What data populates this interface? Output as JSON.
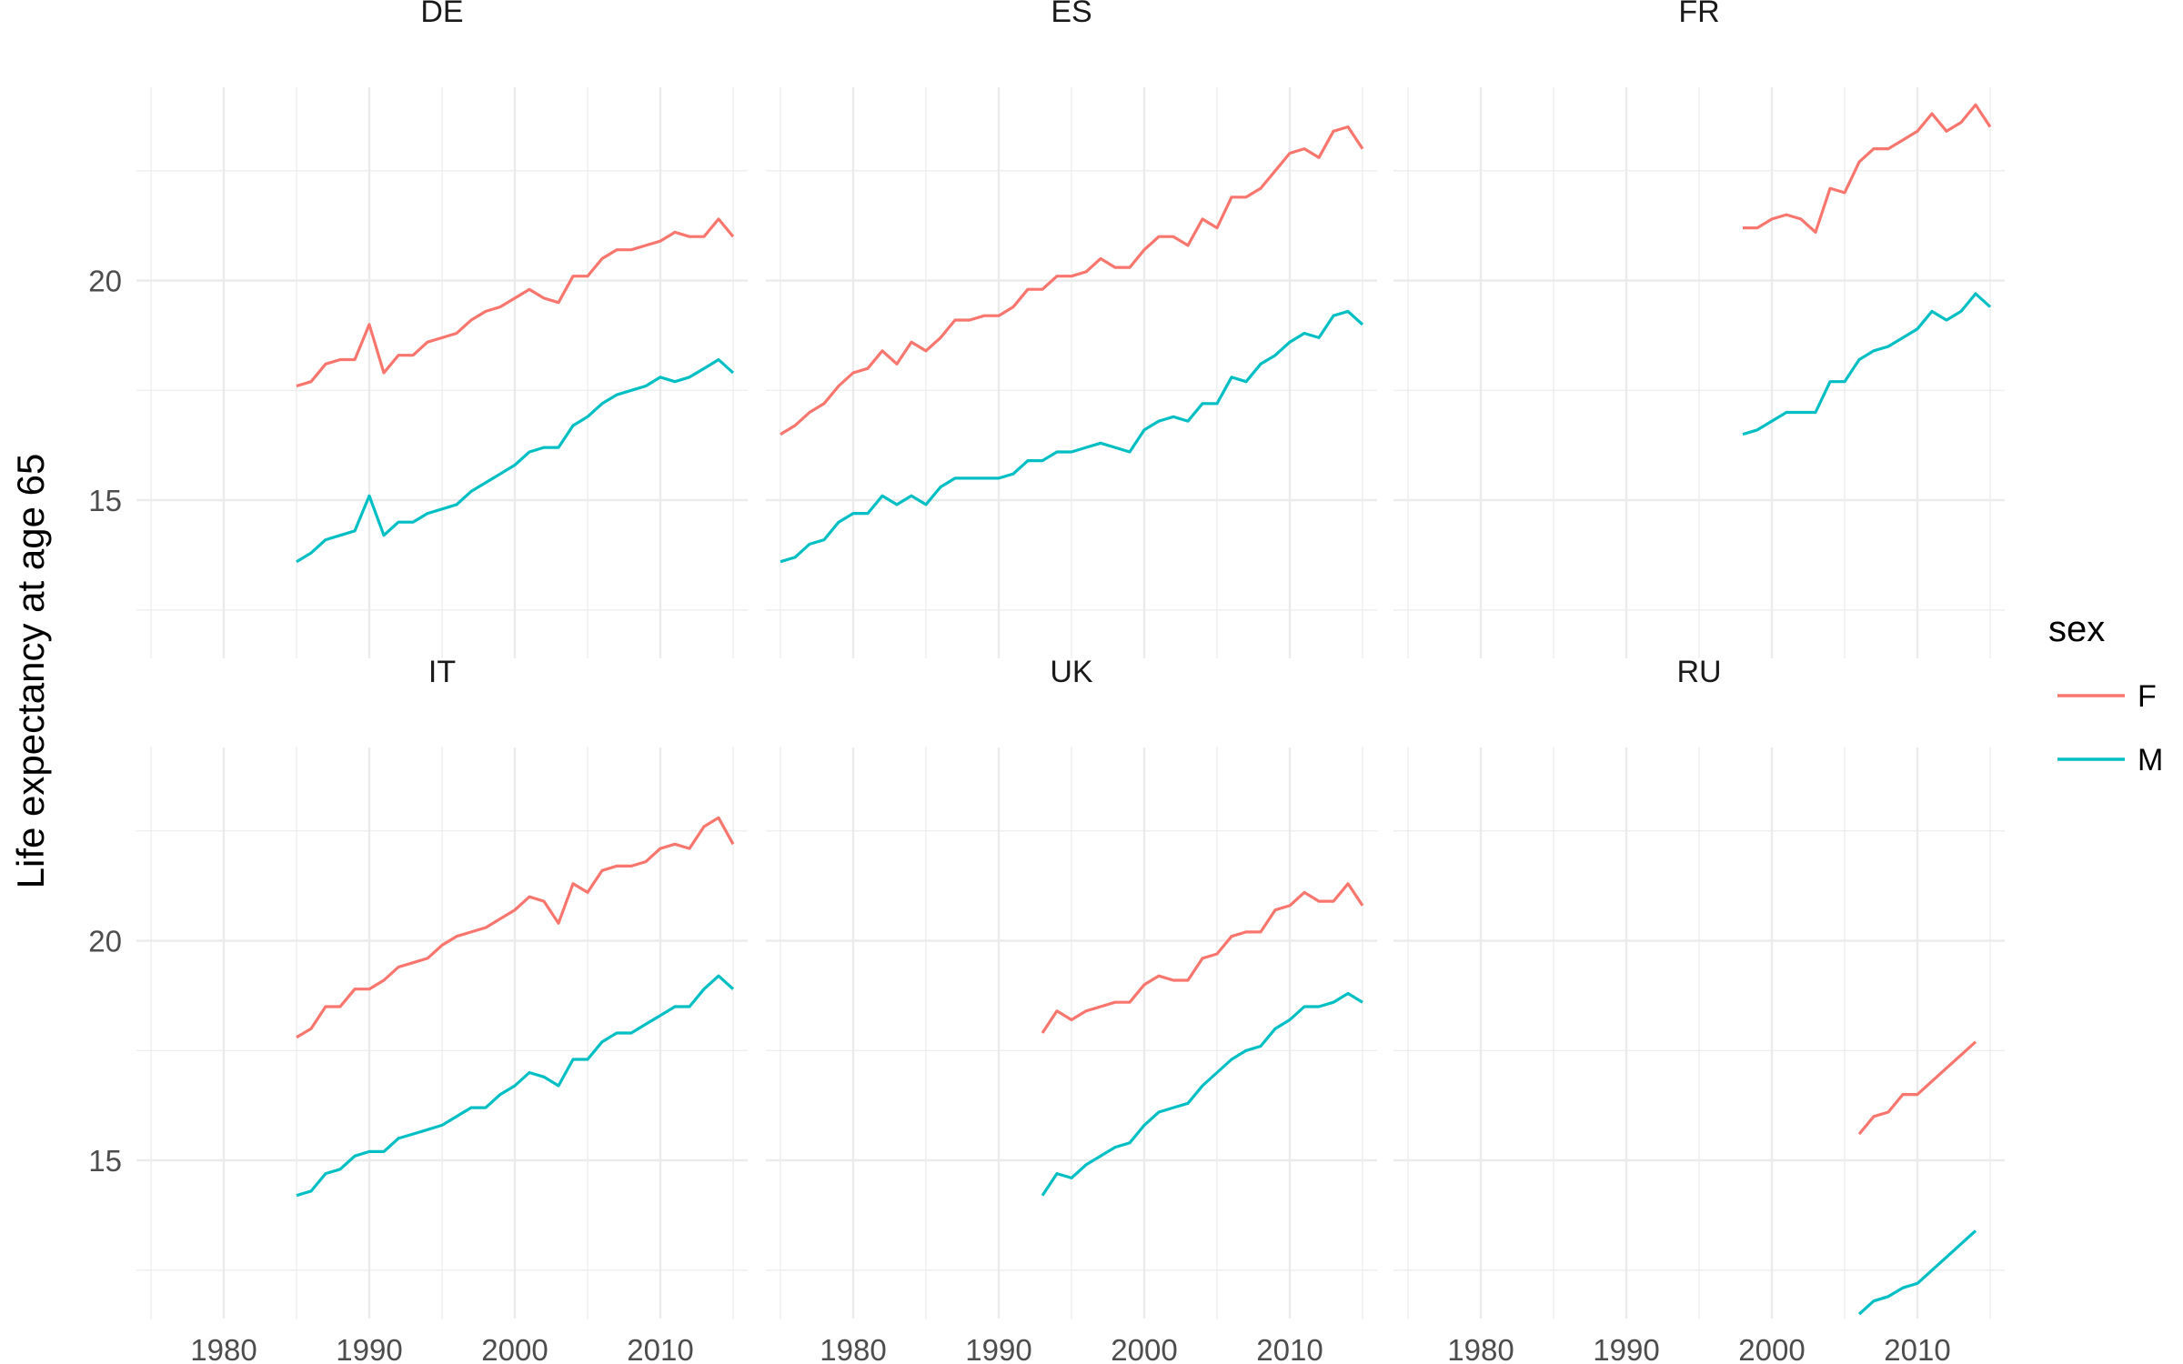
{
  "chart_data": {
    "type": "line",
    "ylabel": "Life expectancy at age 65",
    "legend": {
      "title": "sex",
      "position": "right",
      "entries": [
        {
          "label": "F",
          "color": "#F8766D"
        },
        {
          "label": "M",
          "color": "#00BFC4"
        }
      ]
    },
    "colors": {
      "F": "#F8766D",
      "M": "#00BFC4"
    },
    "x_ticks": [
      1980,
      1990,
      2000,
      2010
    ],
    "x_tick_labels": [
      "1980",
      "1990",
      "2000",
      "2010"
    ],
    "y_ticks": [
      15,
      20
    ],
    "y_tick_labels": [
      "15",
      "20"
    ],
    "xlim": [
      1974,
      2016
    ],
    "ylim": [
      11.4,
      24.4
    ],
    "grid": true,
    "facets": [
      {
        "name": "DE",
        "series": [
          {
            "name": "F",
            "x": [
              1985,
              1986,
              1987,
              1988,
              1989,
              1990,
              1991,
              1992,
              1993,
              1994,
              1995,
              1996,
              1997,
              1998,
              1999,
              2000,
              2001,
              2002,
              2003,
              2004,
              2005,
              2006,
              2007,
              2008,
              2009,
              2010,
              2011,
              2012,
              2013,
              2014,
              2015
            ],
            "y": [
              17.6,
              17.7,
              18.1,
              18.2,
              18.2,
              19.0,
              17.9,
              18.3,
              18.3,
              18.6,
              18.7,
              18.8,
              19.1,
              19.3,
              19.4,
              19.6,
              19.8,
              19.6,
              19.5,
              20.1,
              20.1,
              20.5,
              20.7,
              20.7,
              20.8,
              20.9,
              21.1,
              21.0,
              21.0,
              21.4,
              21.0
            ]
          },
          {
            "name": "M",
            "x": [
              1985,
              1986,
              1987,
              1988,
              1989,
              1990,
              1991,
              1992,
              1993,
              1994,
              1995,
              1996,
              1997,
              1998,
              1999,
              2000,
              2001,
              2002,
              2003,
              2004,
              2005,
              2006,
              2007,
              2008,
              2009,
              2010,
              2011,
              2012,
              2013,
              2014,
              2015
            ],
            "y": [
              13.6,
              13.8,
              14.1,
              14.2,
              14.3,
              15.1,
              14.2,
              14.5,
              14.5,
              14.7,
              14.8,
              14.9,
              15.2,
              15.4,
              15.6,
              15.8,
              16.1,
              16.2,
              16.2,
              16.7,
              16.9,
              17.2,
              17.4,
              17.5,
              17.6,
              17.8,
              17.7,
              17.8,
              18.0,
              18.2,
              17.9
            ]
          }
        ]
      },
      {
        "name": "ES",
        "series": [
          {
            "name": "F",
            "x": [
              1975,
              1976,
              1977,
              1978,
              1979,
              1980,
              1981,
              1982,
              1983,
              1984,
              1985,
              1986,
              1987,
              1988,
              1989,
              1990,
              1991,
              1992,
              1993,
              1994,
              1995,
              1996,
              1997,
              1998,
              1999,
              2000,
              2001,
              2002,
              2003,
              2004,
              2005,
              2006,
              2007,
              2008,
              2009,
              2010,
              2011,
              2012,
              2013,
              2014,
              2015
            ],
            "y": [
              16.5,
              16.7,
              17.0,
              17.2,
              17.6,
              17.9,
              18.0,
              18.4,
              18.1,
              18.6,
              18.4,
              18.7,
              19.1,
              19.1,
              19.2,
              19.2,
              19.4,
              19.8,
              19.8,
              20.1,
              20.1,
              20.2,
              20.5,
              20.3,
              20.3,
              20.7,
              21.0,
              21.0,
              20.8,
              21.4,
              21.2,
              21.9,
              21.9,
              22.1,
              22.5,
              22.9,
              23.0,
              22.8,
              23.4,
              23.5,
              23.0
            ]
          },
          {
            "name": "M",
            "x": [
              1975,
              1976,
              1977,
              1978,
              1979,
              1980,
              1981,
              1982,
              1983,
              1984,
              1985,
              1986,
              1987,
              1988,
              1989,
              1990,
              1991,
              1992,
              1993,
              1994,
              1995,
              1996,
              1997,
              1998,
              1999,
              2000,
              2001,
              2002,
              2003,
              2004,
              2005,
              2006,
              2007,
              2008,
              2009,
              2010,
              2011,
              2012,
              2013,
              2014,
              2015
            ],
            "y": [
              13.6,
              13.7,
              14.0,
              14.1,
              14.5,
              14.7,
              14.7,
              15.1,
              14.9,
              15.1,
              14.9,
              15.3,
              15.5,
              15.5,
              15.5,
              15.5,
              15.6,
              15.9,
              15.9,
              16.1,
              16.1,
              16.2,
              16.3,
              16.2,
              16.1,
              16.6,
              16.8,
              16.9,
              16.8,
              17.2,
              17.2,
              17.8,
              17.7,
              18.1,
              18.3,
              18.6,
              18.8,
              18.7,
              19.2,
              19.3,
              19.0
            ]
          }
        ]
      },
      {
        "name": "FR",
        "series": [
          {
            "name": "F",
            "x": [
              1998,
              1999,
              2000,
              2001,
              2002,
              2003,
              2004,
              2005,
              2006,
              2007,
              2008,
              2009,
              2010,
              2011,
              2012,
              2013,
              2014,
              2015
            ],
            "y": [
              21.2,
              21.2,
              21.4,
              21.5,
              21.4,
              21.1,
              22.1,
              22.0,
              22.7,
              23.0,
              23.0,
              23.2,
              23.4,
              23.8,
              23.4,
              23.6,
              24.0,
              23.5
            ]
          },
          {
            "name": "M",
            "x": [
              1998,
              1999,
              2000,
              2001,
              2002,
              2003,
              2004,
              2005,
              2006,
              2007,
              2008,
              2009,
              2010,
              2011,
              2012,
              2013,
              2014,
              2015
            ],
            "y": [
              16.5,
              16.6,
              16.8,
              17.0,
              17.0,
              17.0,
              17.7,
              17.7,
              18.2,
              18.4,
              18.5,
              18.7,
              18.9,
              19.3,
              19.1,
              19.3,
              19.7,
              19.4
            ]
          }
        ]
      },
      {
        "name": "IT",
        "series": [
          {
            "name": "F",
            "x": [
              1985,
              1986,
              1987,
              1988,
              1989,
              1990,
              1991,
              1992,
              1993,
              1994,
              1995,
              1996,
              1997,
              1998,
              1999,
              2000,
              2001,
              2002,
              2003,
              2004,
              2005,
              2006,
              2007,
              2008,
              2009,
              2010,
              2011,
              2012,
              2013,
              2014,
              2015
            ],
            "y": [
              17.8,
              18.0,
              18.5,
              18.5,
              18.9,
              18.9,
              19.1,
              19.4,
              19.5,
              19.6,
              19.9,
              20.1,
              20.2,
              20.3,
              20.5,
              20.7,
              21.0,
              20.9,
              20.4,
              21.3,
              21.1,
              21.6,
              21.7,
              21.7,
              21.8,
              22.1,
              22.2,
              22.1,
              22.6,
              22.8,
              22.2
            ]
          },
          {
            "name": "M",
            "x": [
              1985,
              1986,
              1987,
              1988,
              1989,
              1990,
              1991,
              1992,
              1993,
              1994,
              1995,
              1996,
              1997,
              1998,
              1999,
              2000,
              2001,
              2002,
              2003,
              2004,
              2005,
              2006,
              2007,
              2008,
              2009,
              2010,
              2011,
              2012,
              2013,
              2014,
              2015
            ],
            "y": [
              14.2,
              14.3,
              14.7,
              14.8,
              15.1,
              15.2,
              15.2,
              15.5,
              15.6,
              15.7,
              15.8,
              16.0,
              16.2,
              16.2,
              16.5,
              16.7,
              17.0,
              16.9,
              16.7,
              17.3,
              17.3,
              17.7,
              17.9,
              17.9,
              18.1,
              18.3,
              18.5,
              18.5,
              18.9,
              19.2,
              18.9
            ]
          }
        ]
      },
      {
        "name": "UK",
        "series": [
          {
            "name": "F",
            "x": [
              1993,
              1994,
              1995,
              1996,
              1997,
              1998,
              1999,
              2000,
              2001,
              2002,
              2003,
              2004,
              2005,
              2006,
              2007,
              2008,
              2009,
              2010,
              2011,
              2012,
              2013,
              2014,
              2015
            ],
            "y": [
              17.9,
              18.4,
              18.2,
              18.4,
              18.5,
              18.6,
              18.6,
              19.0,
              19.2,
              19.1,
              19.1,
              19.6,
              19.7,
              20.1,
              20.2,
              20.2,
              20.7,
              20.8,
              21.1,
              20.9,
              20.9,
              21.3,
              20.8
            ]
          },
          {
            "name": "M",
            "x": [
              1993,
              1994,
              1995,
              1996,
              1997,
              1998,
              1999,
              2000,
              2001,
              2002,
              2003,
              2004,
              2005,
              2006,
              2007,
              2008,
              2009,
              2010,
              2011,
              2012,
              2013,
              2014,
              2015
            ],
            "y": [
              14.2,
              14.7,
              14.6,
              14.9,
              15.1,
              15.3,
              15.4,
              15.8,
              16.1,
              16.2,
              16.3,
              16.7,
              17.0,
              17.3,
              17.5,
              17.6,
              18.0,
              18.2,
              18.5,
              18.5,
              18.6,
              18.8,
              18.6
            ]
          }
        ]
      },
      {
        "name": "RU",
        "series": [
          {
            "name": "F",
            "x": [
              2006,
              2007,
              2008,
              2009,
              2010,
              2011,
              2012,
              2013,
              2014
            ],
            "y": [
              15.6,
              16.0,
              16.1,
              16.5,
              16.5,
              16.8,
              17.1,
              17.4,
              17.7
            ]
          },
          {
            "name": "M",
            "x": [
              2006,
              2007,
              2008,
              2009,
              2010,
              2011,
              2012,
              2013,
              2014
            ],
            "y": [
              11.5,
              11.8,
              11.9,
              12.1,
              12.2,
              12.5,
              12.8,
              13.1,
              13.4
            ]
          }
        ]
      }
    ]
  }
}
